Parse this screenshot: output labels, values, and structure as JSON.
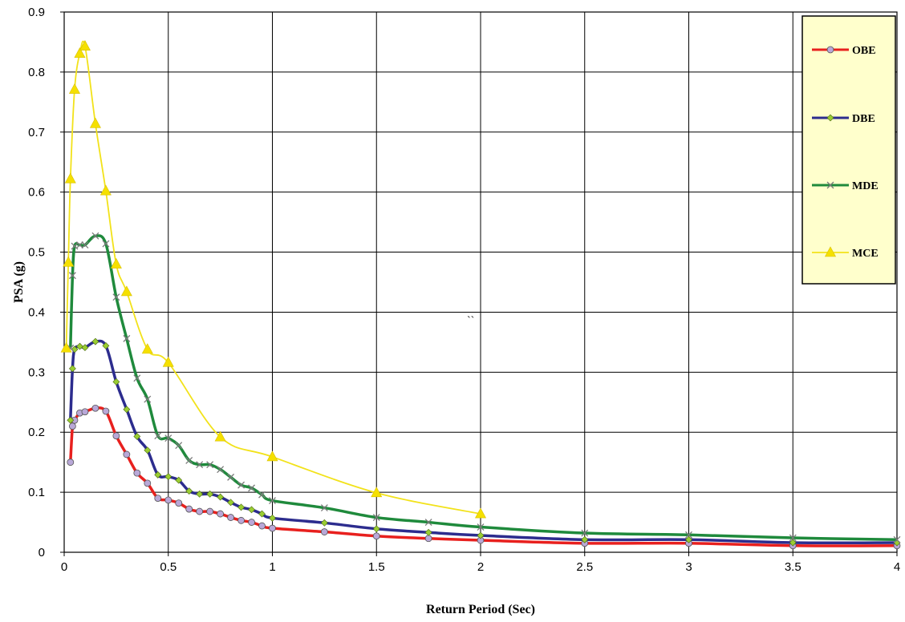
{
  "chart_data": {
    "type": "line",
    "title": "",
    "xlabel": "Return Period (Sec)",
    "ylabel": "PSA (g)",
    "xlim": [
      0,
      4
    ],
    "ylim": [
      0,
      0.9
    ],
    "x_ticks": [
      0,
      0.5,
      1,
      1.5,
      2,
      2.5,
      3,
      3.5,
      4
    ],
    "x_tick_labels": [
      "0",
      "0.5",
      "1",
      "1.5",
      "2",
      "2.5",
      "3",
      "3.5",
      "4"
    ],
    "y_ticks": [
      0,
      0.1,
      0.2,
      0.3,
      0.4,
      0.5,
      0.6,
      0.7,
      0.8,
      0.9
    ],
    "y_tick_labels": [
      "0",
      "0.1",
      "0.2",
      "0.3",
      "0.4",
      "0.5",
      "0.6",
      "0.7",
      "0.8",
      "0.9"
    ],
    "grid": true,
    "legend_position": "top-right",
    "annotation": "``",
    "series": [
      {
        "name": "OBE",
        "color": "#e8201e",
        "marker": "circle",
        "marker_fill": "#b9a8d8",
        "points": [
          [
            0.03,
            0.15
          ],
          [
            0.04,
            0.21
          ],
          [
            0.05,
            0.22
          ],
          [
            0.075,
            0.232
          ],
          [
            0.1,
            0.234
          ],
          [
            0.15,
            0.24
          ],
          [
            0.2,
            0.235
          ],
          [
            0.25,
            0.194
          ],
          [
            0.3,
            0.163
          ],
          [
            0.35,
            0.132
          ],
          [
            0.4,
            0.115
          ],
          [
            0.45,
            0.09
          ],
          [
            0.5,
            0.087
          ],
          [
            0.55,
            0.082
          ],
          [
            0.6,
            0.072
          ],
          [
            0.65,
            0.068
          ],
          [
            0.7,
            0.068
          ],
          [
            0.75,
            0.064
          ],
          [
            0.8,
            0.058
          ],
          [
            0.85,
            0.053
          ],
          [
            0.9,
            0.05
          ],
          [
            0.95,
            0.044
          ],
          [
            1.0,
            0.04
          ],
          [
            1.25,
            0.034
          ],
          [
            1.5,
            0.027
          ],
          [
            1.75,
            0.023
          ],
          [
            2.0,
            0.02
          ],
          [
            2.5,
            0.015
          ],
          [
            3.0,
            0.015
          ],
          [
            3.5,
            0.011
          ],
          [
            4.0,
            0.011
          ]
        ]
      },
      {
        "name": "DBE",
        "color": "#2c2c8e",
        "marker": "diamond",
        "marker_fill": "#9acd32",
        "points": [
          [
            0.03,
            0.22
          ],
          [
            0.04,
            0.306
          ],
          [
            0.05,
            0.338
          ],
          [
            0.075,
            0.343
          ],
          [
            0.1,
            0.341
          ],
          [
            0.15,
            0.351
          ],
          [
            0.2,
            0.344
          ],
          [
            0.25,
            0.284
          ],
          [
            0.3,
            0.238
          ],
          [
            0.35,
            0.193
          ],
          [
            0.4,
            0.17
          ],
          [
            0.45,
            0.129
          ],
          [
            0.5,
            0.126
          ],
          [
            0.55,
            0.12
          ],
          [
            0.6,
            0.102
          ],
          [
            0.65,
            0.097
          ],
          [
            0.7,
            0.097
          ],
          [
            0.75,
            0.092
          ],
          [
            0.8,
            0.083
          ],
          [
            0.85,
            0.075
          ],
          [
            0.9,
            0.071
          ],
          [
            0.95,
            0.064
          ],
          [
            1.0,
            0.057
          ],
          [
            1.25,
            0.049
          ],
          [
            1.5,
            0.039
          ],
          [
            1.75,
            0.033
          ],
          [
            2.0,
            0.028
          ],
          [
            2.5,
            0.021
          ],
          [
            3.0,
            0.021
          ],
          [
            3.5,
            0.016
          ],
          [
            4.0,
            0.016
          ]
        ]
      },
      {
        "name": "MDE",
        "color": "#1f8a3c",
        "marker": "x",
        "marker_fill": "#7a7a7a",
        "points": [
          [
            0.03,
            0.34
          ],
          [
            0.04,
            0.461
          ],
          [
            0.05,
            0.51
          ],
          [
            0.075,
            0.512
          ],
          [
            0.1,
            0.512
          ],
          [
            0.15,
            0.527
          ],
          [
            0.2,
            0.514
          ],
          [
            0.25,
            0.425
          ],
          [
            0.3,
            0.356
          ],
          [
            0.35,
            0.29
          ],
          [
            0.4,
            0.255
          ],
          [
            0.45,
            0.194
          ],
          [
            0.5,
            0.19
          ],
          [
            0.55,
            0.178
          ],
          [
            0.6,
            0.153
          ],
          [
            0.65,
            0.146
          ],
          [
            0.7,
            0.146
          ],
          [
            0.75,
            0.138
          ],
          [
            0.8,
            0.125
          ],
          [
            0.85,
            0.112
          ],
          [
            0.9,
            0.107
          ],
          [
            0.95,
            0.096
          ],
          [
            1.0,
            0.086
          ],
          [
            1.25,
            0.074
          ],
          [
            1.5,
            0.058
          ],
          [
            1.75,
            0.05
          ],
          [
            2.0,
            0.042
          ],
          [
            2.5,
            0.032
          ],
          [
            3.0,
            0.029
          ],
          [
            3.5,
            0.024
          ],
          [
            4.0,
            0.021
          ]
        ]
      },
      {
        "name": "MCE",
        "color": "#f2e21a",
        "marker": "triangle",
        "marker_fill": "#f5e000",
        "points": [
          [
            0.01,
            0.34
          ],
          [
            0.02,
            0.483
          ],
          [
            0.03,
            0.622
          ],
          [
            0.05,
            0.771
          ],
          [
            0.075,
            0.831
          ],
          [
            0.1,
            0.843
          ],
          [
            0.15,
            0.714
          ],
          [
            0.2,
            0.602
          ],
          [
            0.25,
            0.48
          ],
          [
            0.3,
            0.434
          ],
          [
            0.4,
            0.338
          ],
          [
            0.5,
            0.316
          ],
          [
            0.75,
            0.192
          ],
          [
            1.0,
            0.159
          ],
          [
            1.5,
            0.099
          ],
          [
            2.0,
            0.064
          ]
        ]
      }
    ]
  }
}
